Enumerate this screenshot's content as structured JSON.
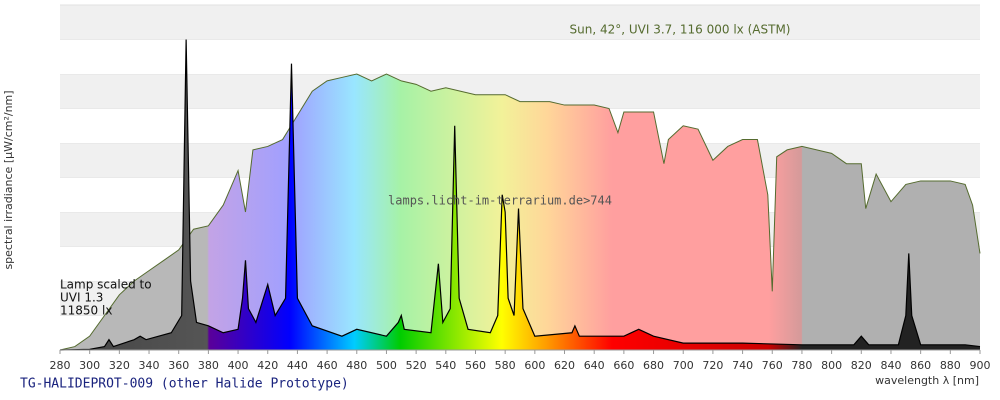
{
  "chart_data": {
    "type": "area",
    "title": "TG-HALIDEPROT-009 (other Halide Prototype)",
    "x_label": "wavelength λ [nm]",
    "y_label": "spectral irradiance [µW/cm²/nm]",
    "annotations": [
      "Sun, 42°, UVI 3.7, 116 000 lx (ASTM)",
      "lamps.licht-im-terrarium.de>744",
      "Lamp scaled to",
      "UVI 1.3",
      "11850 lx"
    ],
    "xlim": [
      280,
      900
    ],
    "xticks": [
      280,
      300,
      320,
      340,
      360,
      380,
      400,
      420,
      440,
      460,
      480,
      500,
      520,
      540,
      560,
      580,
      600,
      620,
      640,
      660,
      680,
      700,
      720,
      740,
      760,
      780,
      800,
      820,
      840,
      860,
      880,
      900
    ],
    "ylim": [
      0,
      10
    ],
    "grid": true,
    "series": [
      {
        "name": "Sun",
        "color": "#556b2f",
        "x": [
          280,
          290,
          300,
          310,
          320,
          330,
          340,
          350,
          360,
          370,
          380,
          390,
          400,
          405,
          410,
          420,
          430,
          440,
          450,
          460,
          470,
          480,
          490,
          500,
          510,
          520,
          530,
          540,
          550,
          560,
          570,
          580,
          590,
          600,
          610,
          620,
          630,
          640,
          650,
          656,
          660,
          670,
          680,
          687,
          690,
          700,
          710,
          720,
          730,
          740,
          750,
          757,
          760,
          763,
          770,
          780,
          790,
          800,
          810,
          820,
          823,
          830,
          840,
          850,
          860,
          870,
          880,
          890,
          895,
          900
        ],
        "values": [
          0,
          0.1,
          0.4,
          1.0,
          1.6,
          2.0,
          2.3,
          2.6,
          2.9,
          3.5,
          3.6,
          4.2,
          5.2,
          4.0,
          5.8,
          5.9,
          6.1,
          6.8,
          7.5,
          7.8,
          7.9,
          8.0,
          7.8,
          8.0,
          7.8,
          7.7,
          7.5,
          7.6,
          7.5,
          7.4,
          7.4,
          7.4,
          7.2,
          7.2,
          7.2,
          7.1,
          7.1,
          7.1,
          7.0,
          6.3,
          6.9,
          6.9,
          6.9,
          5.4,
          6.1,
          6.5,
          6.4,
          5.5,
          5.9,
          6.1,
          6.1,
          4.5,
          1.7,
          5.6,
          5.8,
          5.9,
          5.8,
          5.7,
          5.4,
          5.4,
          4.1,
          5.1,
          4.3,
          4.8,
          4.9,
          4.9,
          4.9,
          4.8,
          4.2,
          2.8
        ]
      },
      {
        "name": "Lamp",
        "color": "#000000",
        "x": [
          280,
          300,
          310,
          313,
          316,
          330,
          334,
          338,
          355,
          362,
          365,
          368,
          372,
          380,
          390,
          400,
          403,
          405,
          407,
          412,
          420,
          425,
          432,
          436,
          440,
          450,
          470,
          480,
          500,
          508,
          510,
          512,
          530,
          535,
          538,
          543,
          546,
          549,
          555,
          570,
          575,
          578,
          580,
          582,
          586,
          589,
          592,
          600,
          625,
          627,
          630,
          640,
          660,
          670,
          680,
          700,
          740,
          780,
          815,
          820,
          825,
          845,
          850,
          852,
          854,
          860,
          880,
          890,
          900
        ],
        "values": [
          0,
          0.02,
          0.1,
          0.3,
          0.1,
          0.3,
          0.4,
          0.3,
          0.5,
          1.0,
          9.0,
          2.0,
          0.8,
          0.7,
          0.5,
          0.6,
          1.5,
          2.6,
          1.2,
          0.8,
          1.9,
          1.0,
          1.5,
          8.3,
          1.5,
          0.7,
          0.4,
          0.6,
          0.4,
          0.8,
          1.0,
          0.6,
          0.5,
          2.5,
          0.8,
          1.2,
          6.5,
          1.5,
          0.6,
          0.5,
          1.0,
          4.5,
          4.0,
          1.5,
          1.0,
          4.1,
          1.2,
          0.4,
          0.5,
          0.7,
          0.4,
          0.4,
          0.4,
          0.6,
          0.4,
          0.2,
          0.2,
          0.15,
          0.15,
          0.4,
          0.15,
          0.15,
          1.0,
          2.8,
          1.0,
          0.15,
          0.15,
          0.15,
          0.1
        ]
      }
    ]
  }
}
